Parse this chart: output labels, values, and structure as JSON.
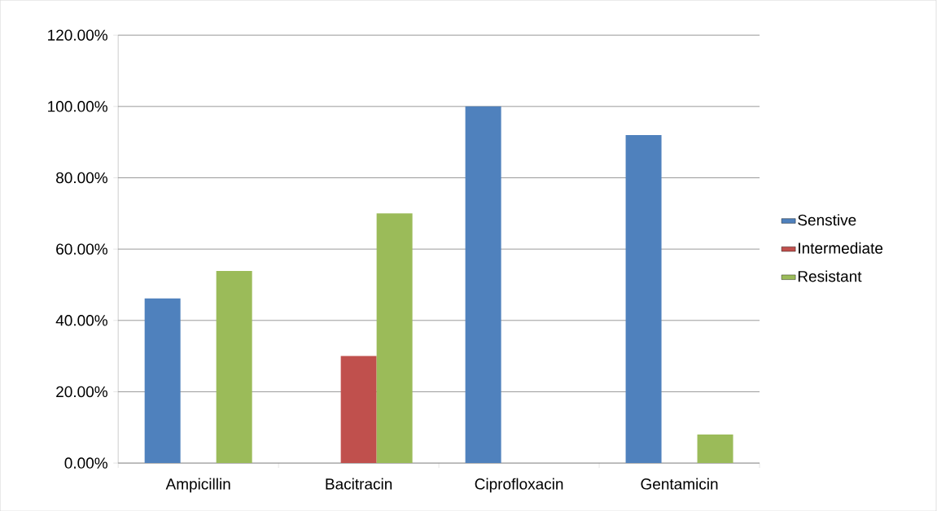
{
  "chart_data": {
    "type": "bar",
    "categories": [
      "Ampicillin",
      "Bacitracin",
      "Ciprofloxacin",
      "Gentamicin"
    ],
    "series": [
      {
        "name": "Senstive",
        "color": "#4f81bd",
        "values": [
          46.15,
          0,
          100,
          92
        ]
      },
      {
        "name": "Intermediate",
        "color": "#c0504d",
        "values": [
          0,
          30,
          0,
          0
        ]
      },
      {
        "name": "Resistant",
        "color": "#9bbb59",
        "values": [
          53.85,
          70,
          0,
          8
        ]
      }
    ],
    "ylim": [
      0,
      120
    ],
    "yticks": [
      {
        "value": 0,
        "label": "0.00%"
      },
      {
        "value": 20,
        "label": "20.00%"
      },
      {
        "value": 40,
        "label": "40.00%"
      },
      {
        "value": 60,
        "label": "60.00%"
      },
      {
        "value": 80,
        "label": "80.00%"
      },
      {
        "value": 100,
        "label": "100.00%"
      },
      {
        "value": 120,
        "label": "120.00%"
      }
    ],
    "grid": "y",
    "legend": "right"
  }
}
